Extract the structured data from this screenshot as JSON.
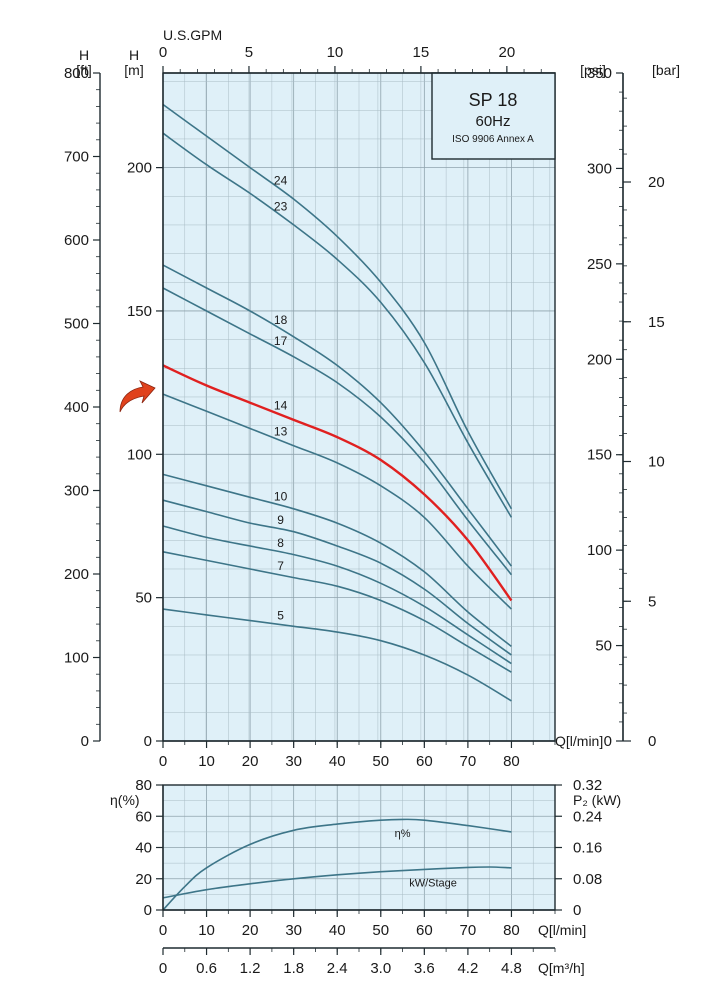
{
  "info_box": {
    "model": "SP 18",
    "frequency": "60Hz",
    "standard": "ISO 9906 Annex A"
  },
  "colors": {
    "plot_bg": "#dff0f8",
    "curve": "#3d7588",
    "highlight": "#e02020",
    "arrow": "#e0421c"
  },
  "axes": {
    "gpm": {
      "label": "U.S.GPM",
      "ticks": [
        "0",
        "5",
        "10",
        "15",
        "20"
      ],
      "range": [
        0,
        22.8
      ]
    },
    "h_ft": {
      "label_top": "H",
      "label_unit": "[ft]",
      "ticks": [
        "0",
        "100",
        "200",
        "300",
        "400",
        "500",
        "600",
        "700",
        "800"
      ],
      "range": [
        0,
        800
      ]
    },
    "h_m": {
      "label_top": "H",
      "label_unit": "[m]",
      "ticks": [
        "0",
        "50",
        "100",
        "150",
        "200"
      ],
      "range": [
        0,
        233
      ]
    },
    "psi": {
      "label_unit": "[psi]",
      "ticks": [
        "0",
        "50",
        "100",
        "150",
        "200",
        "250",
        "300",
        "350"
      ],
      "range": [
        0,
        350
      ]
    },
    "bar": {
      "label_unit": "[bar]",
      "ticks": [
        "0",
        "5",
        "10",
        "15",
        "20"
      ],
      "range": [
        0,
        23.9
      ]
    },
    "q_lmin": {
      "label": "Q[l/min]",
      "ticks": [
        "0",
        "10",
        "20",
        "30",
        "40",
        "50",
        "60",
        "70",
        "80"
      ],
      "range": [
        0,
        90
      ]
    },
    "eta": {
      "label": "η(%)",
      "ticks": [
        "0",
        "20",
        "40",
        "60",
        "80"
      ],
      "range": [
        0,
        80
      ]
    },
    "p2": {
      "label": "P₂ (kW)",
      "ticks": [
        "0",
        "0.08",
        "0.16",
        "0.24",
        "0.32"
      ],
      "range": [
        0,
        0.32
      ]
    },
    "q_m3h": {
      "label": "Q[m³/h]",
      "ticks": [
        "0",
        "0.6",
        "1.2",
        "1.8",
        "2.4",
        "3.0",
        "3.6",
        "4.2",
        "4.8"
      ]
    }
  },
  "chart_data": [
    {
      "type": "line",
      "title": "SP 18 60Hz",
      "xlabel": "Q[l/min]",
      "ylabel": "H [m]",
      "xlim": [
        0,
        90
      ],
      "ylim": [
        0,
        233
      ],
      "grid": true,
      "highlighted_series": "14",
      "series": [
        {
          "name": "24",
          "x": [
            0,
            10,
            20,
            30,
            40,
            50,
            60,
            70,
            80
          ],
          "y": [
            222,
            211,
            200,
            189,
            176,
            160,
            139,
            108,
            81
          ]
        },
        {
          "name": "23",
          "x": [
            0,
            10,
            20,
            30,
            40,
            50,
            60,
            70,
            80
          ],
          "y": [
            212,
            201,
            191,
            180,
            168,
            153,
            132,
            104,
            78
          ]
        },
        {
          "name": "18",
          "x": [
            0,
            10,
            20,
            30,
            40,
            50,
            60,
            70,
            80
          ],
          "y": [
            166,
            158,
            150,
            141,
            131,
            118,
            101,
            81,
            61
          ]
        },
        {
          "name": "17",
          "x": [
            0,
            10,
            20,
            30,
            40,
            50,
            60,
            70,
            80
          ],
          "y": [
            158,
            150,
            142,
            134,
            125,
            113,
            97,
            77,
            58
          ]
        },
        {
          "name": "14",
          "x": [
            0,
            10,
            20,
            30,
            40,
            50,
            60,
            70,
            80
          ],
          "y": [
            131,
            124,
            118,
            112,
            106,
            98,
            86,
            70,
            49
          ]
        },
        {
          "name": "13",
          "x": [
            0,
            10,
            20,
            30,
            40,
            50,
            60,
            70,
            80
          ],
          "y": [
            121,
            115,
            109,
            103,
            97,
            89,
            78,
            61,
            46
          ]
        },
        {
          "name": "10",
          "x": [
            0,
            10,
            20,
            30,
            40,
            50,
            60,
            70,
            80
          ],
          "y": [
            93,
            89,
            85,
            81,
            76,
            69,
            59,
            45,
            33
          ]
        },
        {
          "name": "9",
          "x": [
            0,
            10,
            20,
            30,
            40,
            50,
            60,
            70,
            80
          ],
          "y": [
            84,
            80,
            76,
            73,
            68,
            62,
            53,
            41,
            30
          ]
        },
        {
          "name": "8",
          "x": [
            0,
            10,
            20,
            30,
            40,
            50,
            60,
            70,
            80
          ],
          "y": [
            75,
            71,
            68,
            65,
            61,
            55,
            47,
            37,
            27
          ]
        },
        {
          "name": "7",
          "x": [
            0,
            10,
            20,
            30,
            40,
            50,
            60,
            70,
            80
          ],
          "y": [
            66,
            63,
            60,
            57,
            54,
            49,
            42,
            33,
            24
          ]
        },
        {
          "name": "5",
          "x": [
            0,
            10,
            20,
            30,
            40,
            50,
            60,
            70,
            80
          ],
          "y": [
            46,
            44,
            42,
            40,
            38,
            35,
            30,
            23,
            14
          ]
        }
      ]
    },
    {
      "type": "line",
      "xlabel": "Q[l/min]",
      "ylabel": "η(%)",
      "xlim": [
        0,
        90
      ],
      "ylim": [
        0,
        80
      ],
      "grid": true,
      "series": [
        {
          "name": "η%",
          "axis": "eta",
          "x": [
            0,
            5,
            10,
            20,
            30,
            40,
            50,
            55,
            60,
            70,
            80
          ],
          "y": [
            0,
            15,
            27,
            42,
            51,
            55,
            57.5,
            58,
            57.5,
            54,
            50
          ]
        },
        {
          "name": "kW/Stage",
          "axis": "p2",
          "x": [
            0,
            10,
            20,
            30,
            40,
            50,
            60,
            70,
            75,
            80
          ],
          "y": [
            0.031,
            0.052,
            0.067,
            0.08,
            0.09,
            0.098,
            0.104,
            0.109,
            0.11,
            0.108
          ]
        }
      ]
    }
  ]
}
